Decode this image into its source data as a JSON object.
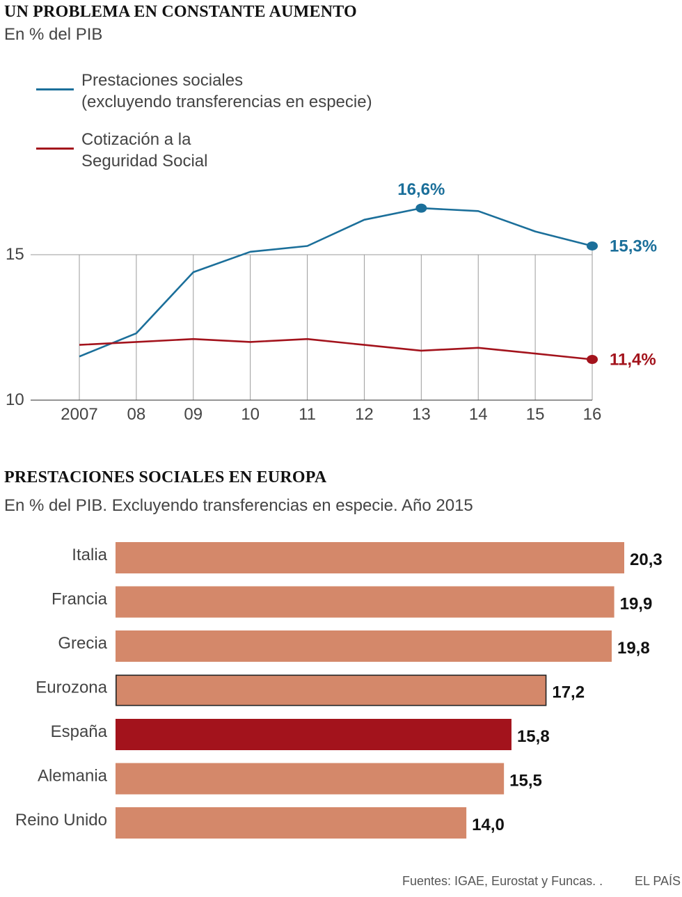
{
  "chart_data": [
    {
      "type": "line",
      "title": "UN PROBLEMA EN CONSTANTE AUMENTO",
      "subtitle": "En % del PIB",
      "x": [
        "2007",
        "08",
        "09",
        "10",
        "11",
        "12",
        "13",
        "14",
        "15",
        "16"
      ],
      "ylim": [
        10,
        16.6
      ],
      "yticks": [
        10,
        15
      ],
      "ytick_labels": [
        "10",
        "15"
      ],
      "series": [
        {
          "name": "Prestaciones sociales",
          "name_line2": "(excluyendo transferencias en especie)",
          "color": "#1b6f9a",
          "values": [
            11.5,
            12.3,
            14.4,
            15.1,
            15.3,
            16.2,
            16.6,
            16.5,
            15.8,
            15.3
          ],
          "annotations": [
            {
              "index": 6,
              "label": "16,6%",
              "position": "above"
            },
            {
              "index": 9,
              "label": "15,3%",
              "position": "right"
            }
          ]
        },
        {
          "name": "Cotización a la",
          "name_line2": "Seguridad Social",
          "color": "#a3131c",
          "values": [
            11.9,
            12.0,
            12.1,
            12.0,
            12.1,
            11.9,
            11.7,
            11.8,
            11.6,
            11.4
          ],
          "annotations": [
            {
              "index": 9,
              "label": "11,4%",
              "position": "right"
            }
          ]
        }
      ]
    },
    {
      "type": "bar",
      "orientation": "horizontal",
      "title": "PRESTACIONES SOCIALES EN EUROPA",
      "subtitle": "En % del PIB. Excluyendo transferencias en especie. Año 2015",
      "categories": [
        "Italia",
        "Francia",
        "Grecia",
        "Eurozona",
        "España",
        "Alemania",
        "Reino Unido"
      ],
      "values": [
        20.3,
        19.9,
        19.8,
        17.2,
        15.8,
        15.5,
        14.0
      ],
      "value_labels": [
        "20,3",
        "19,9",
        "19,8",
        "17,2",
        "15,8",
        "15,5",
        "14,0"
      ],
      "xlim": [
        0,
        20.3
      ],
      "bar_color": "#d4886a",
      "highlight": {
        "category": "España",
        "color": "#a3131c"
      },
      "outlined": {
        "category": "Eurozona",
        "outline_color": "#222222"
      }
    }
  ],
  "footer": {
    "source": "Fuentes: IGAE, Eurostat y Funcas. .",
    "brand": "EL PAÍS"
  },
  "colors": {
    "grid": "#9a9a9a",
    "axis": "#555555",
    "label": "#444444",
    "value_label": "#111111"
  }
}
